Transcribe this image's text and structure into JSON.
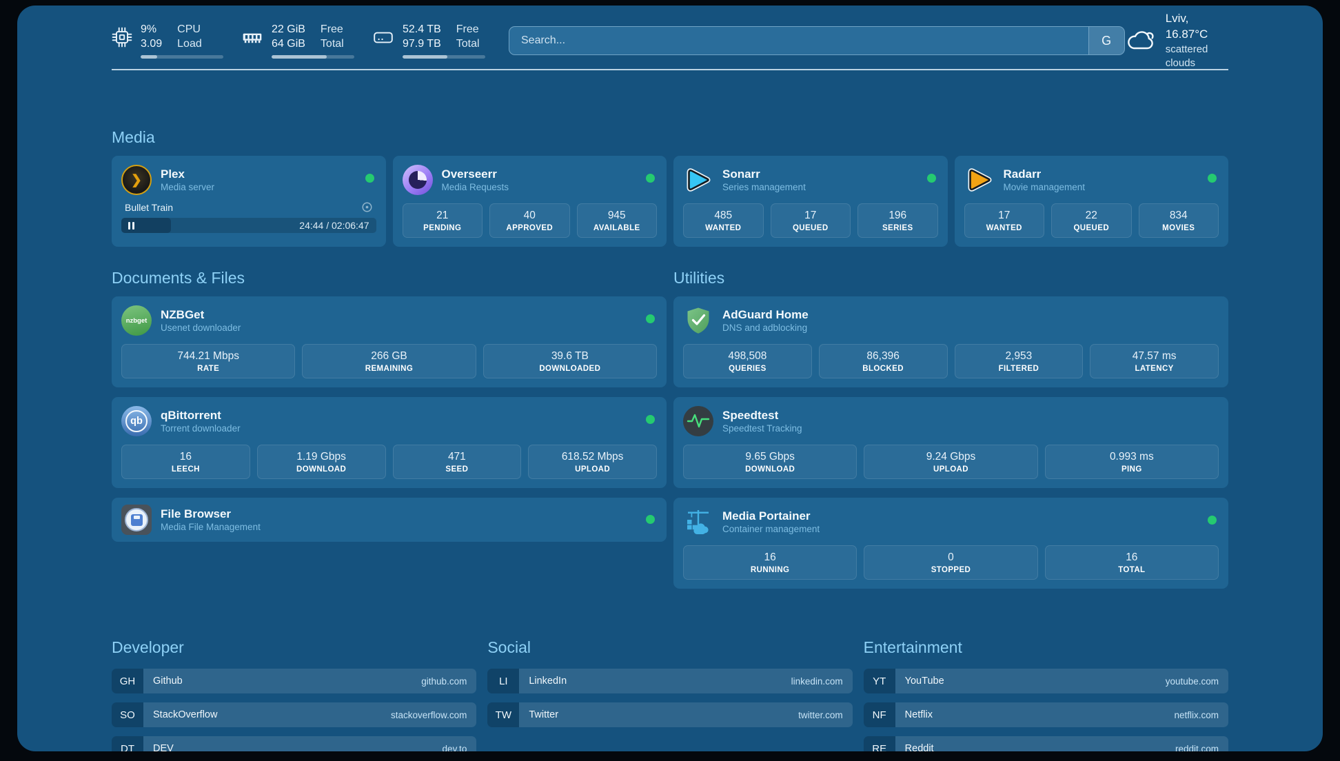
{
  "topbar": {
    "stats": [
      {
        "icon": "cpu-icon",
        "values": [
          "9%",
          "3.09"
        ],
        "labels": [
          "CPU",
          "Load"
        ],
        "progress_pct": 20
      },
      {
        "icon": "memory-icon",
        "values": [
          "22 GiB",
          "64 GiB"
        ],
        "labels": [
          "Free",
          "Total"
        ],
        "progress_pct": 67
      },
      {
        "icon": "disk-icon",
        "values": [
          "52.4 TB",
          "97.9 TB"
        ],
        "labels": [
          "Free",
          "Total"
        ],
        "progress_pct": 54
      }
    ],
    "search": {
      "placeholder": "Search...",
      "engine_button": "G"
    },
    "weather": {
      "location": "Lviv, 16.87°C",
      "condition": "scattered clouds"
    }
  },
  "sections": {
    "media": {
      "title": "Media",
      "cards": [
        {
          "name": "Plex",
          "subtitle": "Media server",
          "online": true,
          "now_playing": {
            "title": "Bullet Train",
            "time_display": "24:44 / 02:06:47",
            "progress_pct": 19.5
          }
        },
        {
          "name": "Overseerr",
          "subtitle": "Media Requests",
          "online": true,
          "stats": [
            {
              "value": "21",
              "label": "PENDING"
            },
            {
              "value": "40",
              "label": "APPROVED"
            },
            {
              "value": "945",
              "label": "AVAILABLE"
            }
          ]
        },
        {
          "name": "Sonarr",
          "subtitle": "Series management",
          "online": true,
          "stats": [
            {
              "value": "485",
              "label": "WANTED"
            },
            {
              "value": "17",
              "label": "QUEUED"
            },
            {
              "value": "196",
              "label": "SERIES"
            }
          ]
        },
        {
          "name": "Radarr",
          "subtitle": "Movie management",
          "online": true,
          "stats": [
            {
              "value": "17",
              "label": "WANTED"
            },
            {
              "value": "22",
              "label": "QUEUED"
            },
            {
              "value": "834",
              "label": "MOVIES"
            }
          ]
        }
      ]
    },
    "documents": {
      "title": "Documents & Files",
      "cards": [
        {
          "name": "NZBGet",
          "subtitle": "Usenet downloader",
          "icon_text": "nzbget",
          "online": true,
          "stats": [
            {
              "value": "744.21 Mbps",
              "label": "RATE"
            },
            {
              "value": "266 GB",
              "label": "REMAINING"
            },
            {
              "value": "39.6 TB",
              "label": "DOWNLOADED"
            }
          ]
        },
        {
          "name": "qBittorrent",
          "subtitle": "Torrent downloader",
          "icon_text": "qb",
          "online": true,
          "stats": [
            {
              "value": "16",
              "label": "LEECH"
            },
            {
              "value": "1.19 Gbps",
              "label": "DOWNLOAD"
            },
            {
              "value": "471",
              "label": "SEED"
            },
            {
              "value": "618.52 Mbps",
              "label": "UPLOAD"
            }
          ]
        },
        {
          "name": "File Browser",
          "subtitle": "Media File Management",
          "online": true
        }
      ]
    },
    "utilities": {
      "title": "Utilities",
      "cards": [
        {
          "name": "AdGuard Home",
          "subtitle": "DNS and adblocking",
          "stats": [
            {
              "value": "498,508",
              "label": "QUERIES"
            },
            {
              "value": "86,396",
              "label": "BLOCKED"
            },
            {
              "value": "2,953",
              "label": "FILTERED"
            },
            {
              "value": "47.57 ms",
              "label": "LATENCY"
            }
          ]
        },
        {
          "name": "Speedtest",
          "subtitle": "Speedtest Tracking",
          "stats": [
            {
              "value": "9.65 Gbps",
              "label": "DOWNLOAD"
            },
            {
              "value": "9.24 Gbps",
              "label": "UPLOAD"
            },
            {
              "value": "0.993 ms",
              "label": "PING"
            }
          ]
        },
        {
          "name": "Media Portainer",
          "subtitle": "Container management",
          "online": true,
          "stats": [
            {
              "value": "16",
              "label": "RUNNING"
            },
            {
              "value": "0",
              "label": "STOPPED"
            },
            {
              "value": "16",
              "label": "TOTAL"
            }
          ]
        }
      ]
    },
    "bookmarks": [
      {
        "title": "Developer",
        "links": [
          {
            "abbr": "GH",
            "name": "Github",
            "url": "github.com"
          },
          {
            "abbr": "SO",
            "name": "StackOverflow",
            "url": "stackoverflow.com"
          },
          {
            "abbr": "DT",
            "name": "DEV",
            "url": "dev.to"
          }
        ]
      },
      {
        "title": "Social",
        "links": [
          {
            "abbr": "LI",
            "name": "LinkedIn",
            "url": "linkedin.com"
          },
          {
            "abbr": "TW",
            "name": "Twitter",
            "url": "twitter.com"
          }
        ]
      },
      {
        "title": "Entertainment",
        "links": [
          {
            "abbr": "YT",
            "name": "YouTube",
            "url": "youtube.com"
          },
          {
            "abbr": "NF",
            "name": "Netflix",
            "url": "netflix.com"
          },
          {
            "abbr": "RE",
            "name": "Reddit",
            "url": "reddit.com"
          }
        ]
      }
    ]
  },
  "colors": {
    "status_online": "#25ca70",
    "accent_title": "#8ed1f6",
    "background": "#15527e",
    "card": "#1f6492"
  }
}
